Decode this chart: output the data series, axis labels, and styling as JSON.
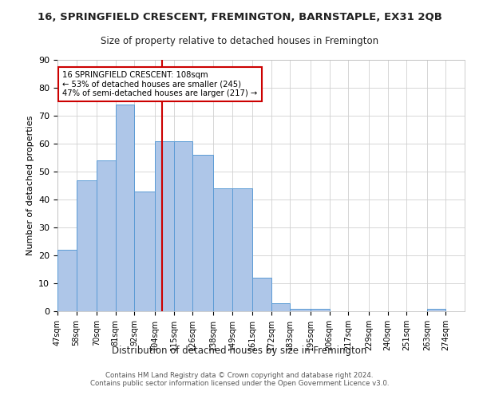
{
  "title": "16, SPRINGFIELD CRESCENT, FREMINGTON, BARNSTAPLE, EX31 2QB",
  "subtitle": "Size of property relative to detached houses in Fremington",
  "xlabel": "Distribution of detached houses by size in Fremington",
  "ylabel": "Number of detached properties",
  "bar_labels": [
    "47sqm",
    "58sqm",
    "70sqm",
    "81sqm",
    "92sqm",
    "104sqm",
    "115sqm",
    "126sqm",
    "138sqm",
    "149sqm",
    "161sqm",
    "172sqm",
    "183sqm",
    "195sqm",
    "206sqm",
    "217sqm",
    "229sqm",
    "240sqm",
    "251sqm",
    "263sqm",
    "274sqm"
  ],
  "bar_values": [
    22,
    47,
    54,
    74,
    43,
    61,
    61,
    56,
    44,
    44,
    12,
    3,
    1,
    1,
    0,
    0,
    0,
    0,
    0,
    1,
    0
  ],
  "bar_color": "#aec6e8",
  "bar_edgecolor": "#5b9bd5",
  "reference_line_x": 108,
  "bin_edges": [
    47,
    58,
    70,
    81,
    92,
    104,
    115,
    126,
    138,
    149,
    161,
    172,
    183,
    195,
    206,
    217,
    229,
    240,
    251,
    263,
    274,
    285
  ],
  "annotation_text": "16 SPRINGFIELD CRESCENT: 108sqm\n← 53% of detached houses are smaller (245)\n47% of semi-detached houses are larger (217) →",
  "annotation_box_color": "#ffffff",
  "annotation_box_edgecolor": "#cc0000",
  "vline_color": "#cc0000",
  "ylim": [
    0,
    90
  ],
  "yticks": [
    0,
    10,
    20,
    30,
    40,
    50,
    60,
    70,
    80,
    90
  ],
  "footer": "Contains HM Land Registry data © Crown copyright and database right 2024.\nContains public sector information licensed under the Open Government Licence v3.0.",
  "bg_color": "#ffffff",
  "grid_color": "#d0d0d0"
}
